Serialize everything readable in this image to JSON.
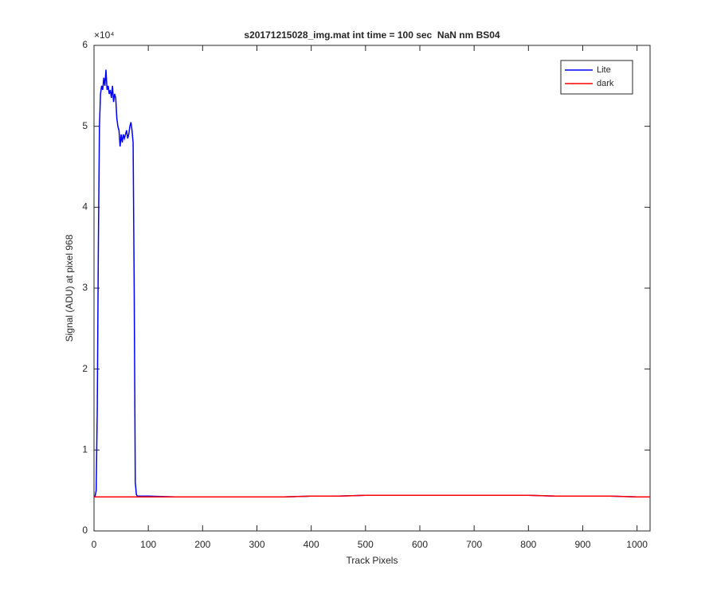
{
  "chart_data": {
    "type": "line",
    "title": "s20171215028_img.mat int time = 100 sec  NaN nm BS04",
    "x_label": "Track Pixels",
    "y_label": "Signal (ADU) at pixel 968",
    "y_multiplier": "×10⁴",
    "x": [
      0,
      2,
      4,
      6,
      8,
      10,
      12,
      14,
      16,
      18,
      20,
      22,
      24,
      26,
      28,
      30,
      32,
      34,
      36,
      38,
      40,
      42,
      44,
      46,
      48,
      50,
      52,
      54,
      56,
      58,
      60,
      62,
      64,
      66,
      68,
      70,
      72,
      74,
      76,
      78,
      80,
      100,
      150,
      200,
      250,
      300,
      350,
      400,
      450,
      500,
      550,
      600,
      650,
      700,
      750,
      800,
      850,
      900,
      950,
      1000,
      1023
    ],
    "series": [
      {
        "name": "Lite",
        "color": "#0000ff",
        "values": [
          0.42,
          0.43,
          0.5,
          1.5,
          3.5,
          5.0,
          5.4,
          5.5,
          5.45,
          5.6,
          5.5,
          5.7,
          5.45,
          5.5,
          5.4,
          5.45,
          5.35,
          5.5,
          5.3,
          5.4,
          5.35,
          5.1,
          5.0,
          4.95,
          4.75,
          4.9,
          4.8,
          4.9,
          4.85,
          4.9,
          4.95,
          4.85,
          4.9,
          5.0,
          5.05,
          4.95,
          4.8,
          3.0,
          0.6,
          0.45,
          0.43,
          0.43,
          0.42,
          0.42,
          0.42,
          0.42,
          0.42,
          0.43,
          0.43,
          0.44,
          0.44,
          0.44,
          0.44,
          0.44,
          0.44,
          0.44,
          0.43,
          0.43,
          0.43,
          0.42,
          0.42
        ]
      },
      {
        "name": "dark",
        "color": "#ff0000",
        "values": [
          0.42,
          0.42,
          0.42,
          0.42,
          0.42,
          0.42,
          0.42,
          0.42,
          0.42,
          0.42,
          0.42,
          0.42,
          0.42,
          0.42,
          0.42,
          0.42,
          0.42,
          0.42,
          0.42,
          0.42,
          0.42,
          0.42,
          0.42,
          0.42,
          0.42,
          0.42,
          0.42,
          0.42,
          0.42,
          0.42,
          0.42,
          0.42,
          0.42,
          0.42,
          0.42,
          0.42,
          0.42,
          0.42,
          0.42,
          0.42,
          0.42,
          0.42,
          0.42,
          0.42,
          0.42,
          0.42,
          0.42,
          0.43,
          0.43,
          0.44,
          0.44,
          0.44,
          0.44,
          0.44,
          0.44,
          0.44,
          0.43,
          0.43,
          0.43,
          0.42,
          0.42
        ]
      }
    ],
    "xlim": [
      0,
      1024
    ],
    "xticks": [
      0,
      100,
      200,
      300,
      400,
      500,
      600,
      700,
      800,
      900,
      1000
    ],
    "ylim": [
      0,
      6
    ],
    "yticks": [
      0,
      1,
      2,
      3,
      4,
      5,
      6
    ],
    "grid": false,
    "legend": "top-right"
  }
}
